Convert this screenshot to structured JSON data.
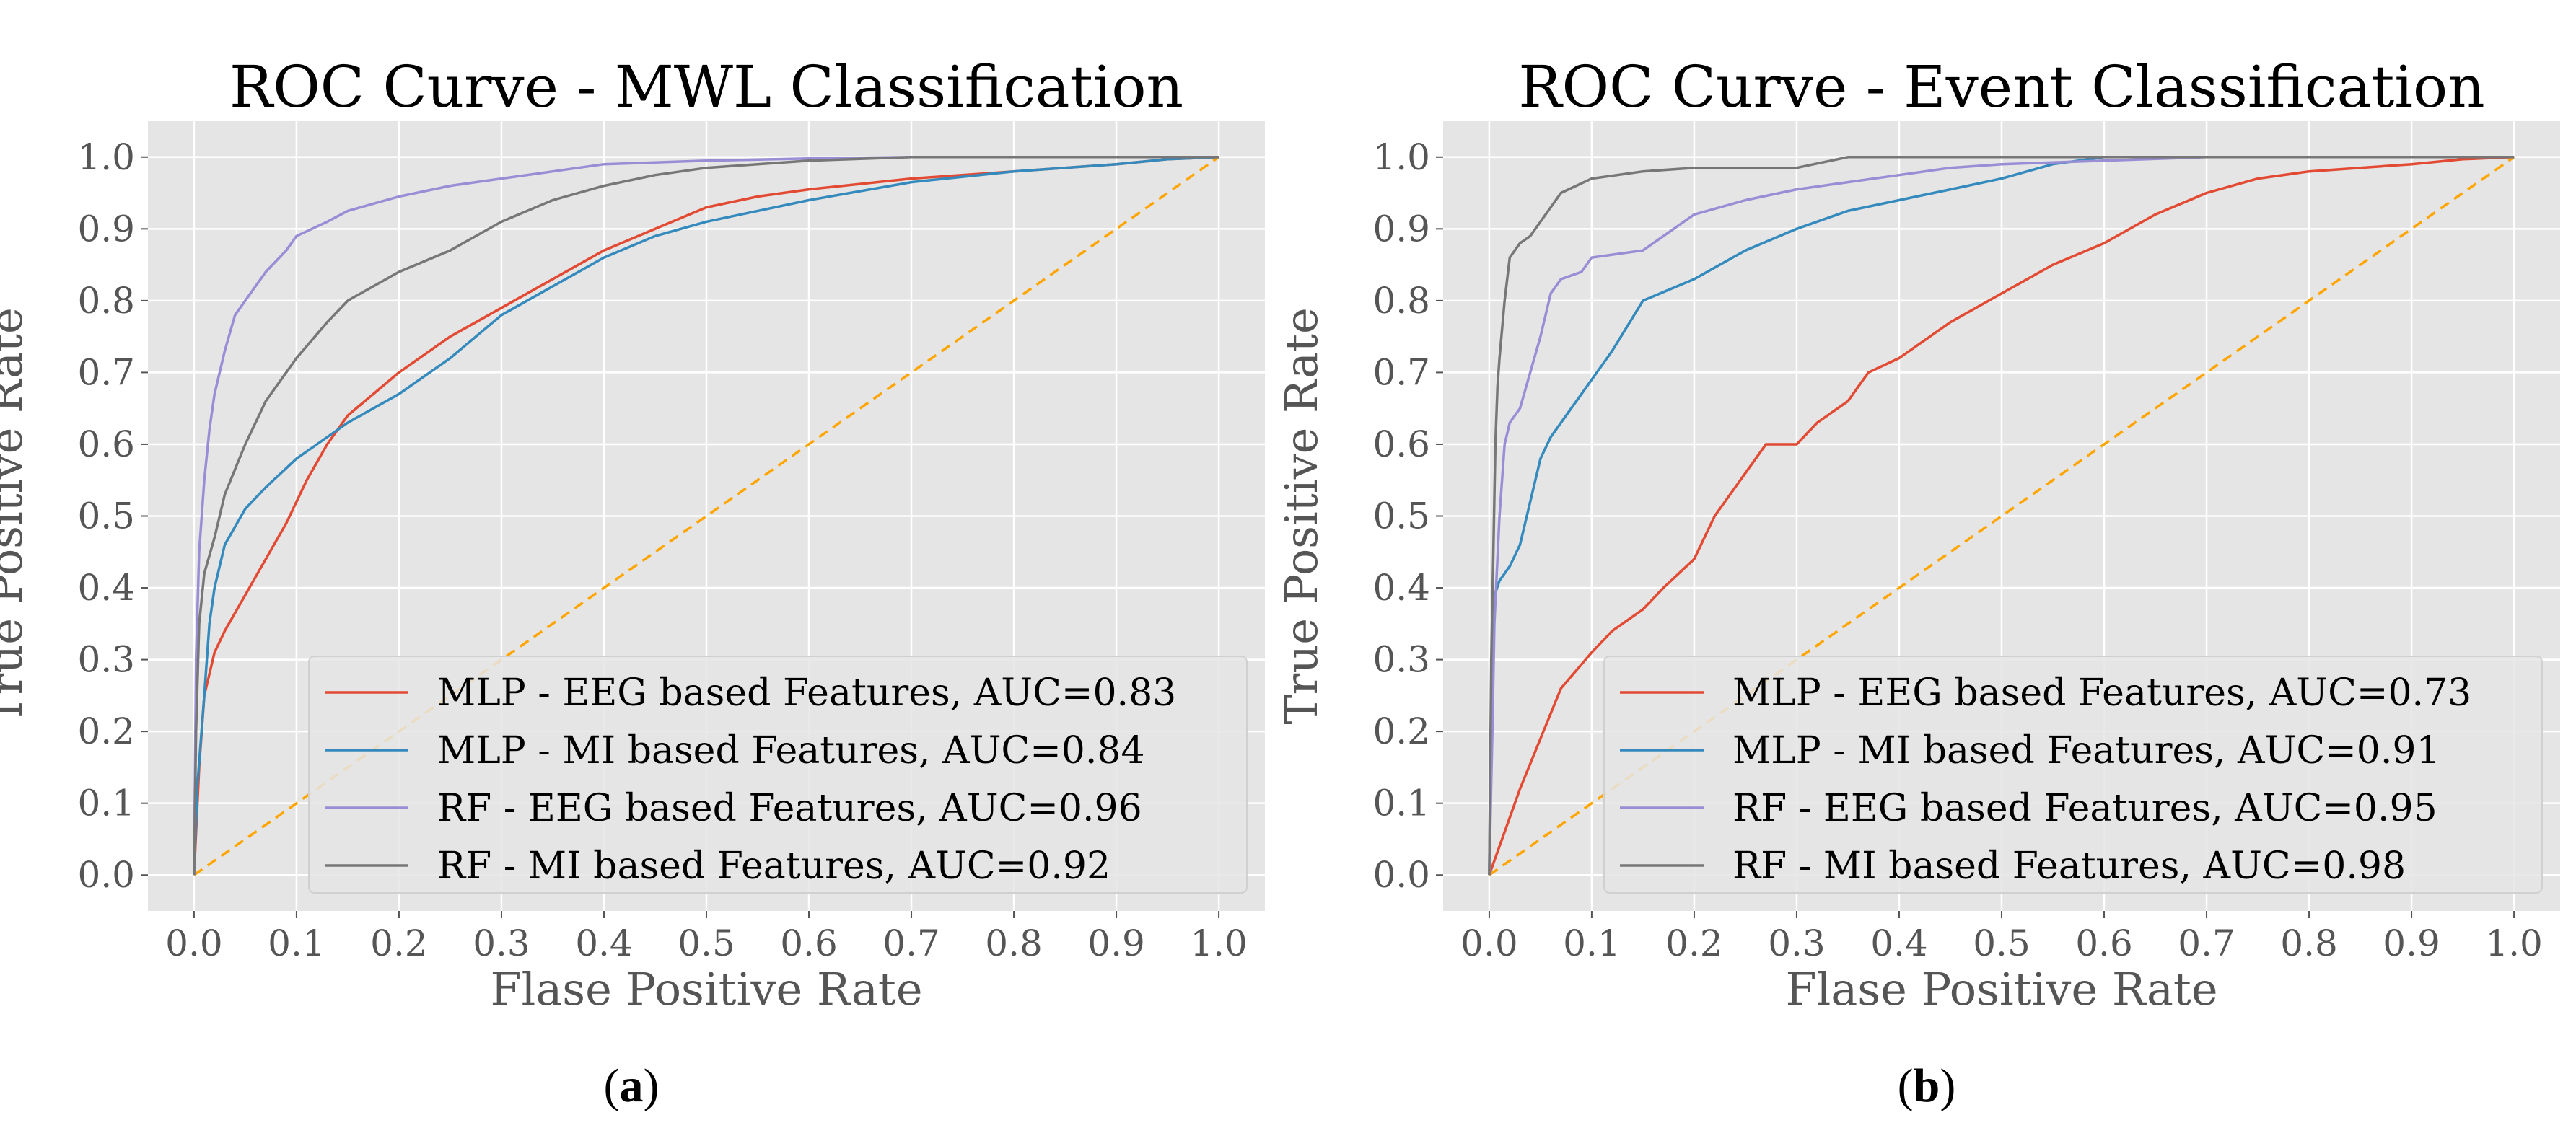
{
  "chart_data": [
    {
      "type": "line",
      "panel_label": "a",
      "title": "ROC Curve - MWL Classification",
      "xlabel": "Flase Positive Rate",
      "ylabel": "True Positive Rate",
      "xlim": [
        -0.045,
        1.045
      ],
      "ylim": [
        -0.05,
        1.05
      ],
      "xticks": [
        0.0,
        0.1,
        0.2,
        0.3,
        0.4,
        0.5,
        0.6,
        0.7,
        0.8,
        0.9,
        1.0
      ],
      "yticks": [
        0.0,
        0.1,
        0.2,
        0.3,
        0.4,
        0.5,
        0.6,
        0.7,
        0.8,
        0.9,
        1.0
      ],
      "grid": true,
      "legend": "lower-right",
      "diagonal": {
        "style": "dashed",
        "color": "#ffa500"
      },
      "series": [
        {
          "name": "MLP - EEG based Features, AUC=0.83",
          "color": "#e24a33",
          "x": [
            0,
            0.005,
            0.01,
            0.02,
            0.03,
            0.05,
            0.07,
            0.09,
            0.11,
            0.13,
            0.15,
            0.2,
            0.25,
            0.3,
            0.35,
            0.4,
            0.45,
            0.5,
            0.55,
            0.6,
            0.7,
            0.8,
            0.9,
            0.95,
            1.0
          ],
          "y": [
            0,
            0.15,
            0.25,
            0.31,
            0.34,
            0.39,
            0.44,
            0.49,
            0.55,
            0.6,
            0.64,
            0.7,
            0.75,
            0.79,
            0.83,
            0.87,
            0.9,
            0.93,
            0.945,
            0.955,
            0.97,
            0.98,
            0.99,
            0.997,
            1.0
          ]
        },
        {
          "name": "MLP - MI based Features, AUC=0.84",
          "color": "#348abd",
          "x": [
            0,
            0.003,
            0.01,
            0.015,
            0.02,
            0.03,
            0.05,
            0.07,
            0.1,
            0.13,
            0.15,
            0.2,
            0.25,
            0.3,
            0.35,
            0.4,
            0.45,
            0.5,
            0.6,
            0.7,
            0.8,
            0.9,
            0.95,
            1.0
          ],
          "y": [
            0,
            0.12,
            0.25,
            0.35,
            0.4,
            0.46,
            0.51,
            0.54,
            0.58,
            0.61,
            0.63,
            0.67,
            0.72,
            0.78,
            0.82,
            0.86,
            0.89,
            0.91,
            0.94,
            0.965,
            0.98,
            0.99,
            0.997,
            1.0
          ]
        },
        {
          "name": "RF - EEG based Features, AUC=0.96",
          "color": "#988ed5",
          "x": [
            0,
            0.002,
            0.005,
            0.01,
            0.015,
            0.02,
            0.03,
            0.04,
            0.05,
            0.07,
            0.09,
            0.1,
            0.13,
            0.15,
            0.2,
            0.25,
            0.3,
            0.35,
            0.4,
            0.5,
            0.6,
            0.7,
            0.8,
            0.9,
            1.0
          ],
          "y": [
            0,
            0.3,
            0.45,
            0.55,
            0.62,
            0.67,
            0.73,
            0.78,
            0.8,
            0.84,
            0.87,
            0.89,
            0.91,
            0.925,
            0.945,
            0.96,
            0.97,
            0.98,
            0.99,
            0.995,
            0.998,
            1.0,
            1.0,
            1.0,
            1.0
          ]
        },
        {
          "name": "RF - MI based Features, AUC=0.92",
          "color": "#777777",
          "x": [
            0,
            0.002,
            0.005,
            0.01,
            0.02,
            0.03,
            0.05,
            0.07,
            0.1,
            0.13,
            0.15,
            0.2,
            0.25,
            0.3,
            0.35,
            0.4,
            0.45,
            0.5,
            0.6,
            0.7,
            0.8,
            0.9,
            1.0
          ],
          "y": [
            0,
            0.2,
            0.35,
            0.42,
            0.47,
            0.53,
            0.6,
            0.66,
            0.72,
            0.77,
            0.8,
            0.84,
            0.87,
            0.91,
            0.94,
            0.96,
            0.975,
            0.985,
            0.995,
            1.0,
            1.0,
            1.0,
            1.0
          ]
        }
      ]
    },
    {
      "type": "line",
      "panel_label": "b",
      "title": "ROC Curve - Event Classification",
      "xlabel": "Flase Positive Rate",
      "ylabel": "True Positive Rate",
      "xlim": [
        -0.045,
        1.045
      ],
      "ylim": [
        -0.05,
        1.05
      ],
      "xticks": [
        0.0,
        0.1,
        0.2,
        0.3,
        0.4,
        0.5,
        0.6,
        0.7,
        0.8,
        0.9,
        1.0
      ],
      "yticks": [
        0.0,
        0.1,
        0.2,
        0.3,
        0.4,
        0.5,
        0.6,
        0.7,
        0.8,
        0.9,
        1.0
      ],
      "grid": true,
      "legend": "lower-right",
      "diagonal": {
        "style": "dashed",
        "color": "#ffa500"
      },
      "series": [
        {
          "name": "MLP - EEG based Features, AUC=0.73",
          "color": "#e24a33",
          "x": [
            0,
            0.01,
            0.02,
            0.03,
            0.05,
            0.07,
            0.1,
            0.12,
            0.15,
            0.17,
            0.2,
            0.22,
            0.25,
            0.27,
            0.3,
            0.32,
            0.35,
            0.37,
            0.4,
            0.45,
            0.5,
            0.55,
            0.6,
            0.65,
            0.7,
            0.75,
            0.8,
            0.85,
            0.9,
            0.95,
            1.0
          ],
          "y": [
            0,
            0.04,
            0.08,
            0.12,
            0.19,
            0.26,
            0.31,
            0.34,
            0.37,
            0.4,
            0.44,
            0.5,
            0.56,
            0.6,
            0.6,
            0.63,
            0.66,
            0.7,
            0.72,
            0.77,
            0.81,
            0.85,
            0.88,
            0.92,
            0.95,
            0.97,
            0.98,
            0.985,
            0.99,
            0.997,
            1.0
          ]
        },
        {
          "name": "MLP - MI based Features, AUC=0.91",
          "color": "#348abd",
          "x": [
            0,
            0.003,
            0.01,
            0.02,
            0.03,
            0.04,
            0.05,
            0.06,
            0.08,
            0.1,
            0.12,
            0.15,
            0.2,
            0.25,
            0.3,
            0.35,
            0.4,
            0.45,
            0.5,
            0.55,
            0.6,
            0.7,
            0.8,
            0.9,
            1.0
          ],
          "y": [
            0,
            0.38,
            0.41,
            0.43,
            0.46,
            0.52,
            0.58,
            0.61,
            0.65,
            0.69,
            0.73,
            0.8,
            0.83,
            0.87,
            0.9,
            0.925,
            0.94,
            0.955,
            0.97,
            0.99,
            1.0,
            1.0,
            1.0,
            1.0,
            1.0
          ]
        },
        {
          "name": "RF - EEG based Features, AUC=0.95",
          "color": "#988ed5",
          "x": [
            0,
            0.003,
            0.005,
            0.01,
            0.015,
            0.02,
            0.03,
            0.04,
            0.05,
            0.06,
            0.07,
            0.09,
            0.1,
            0.15,
            0.2,
            0.25,
            0.3,
            0.35,
            0.4,
            0.45,
            0.5,
            0.6,
            0.7,
            0.8,
            0.9,
            1.0
          ],
          "y": [
            0,
            0.2,
            0.35,
            0.5,
            0.6,
            0.63,
            0.65,
            0.7,
            0.75,
            0.81,
            0.83,
            0.84,
            0.86,
            0.87,
            0.92,
            0.94,
            0.955,
            0.965,
            0.975,
            0.985,
            0.99,
            0.995,
            1.0,
            1.0,
            1.0,
            1.0
          ]
        },
        {
          "name": "RF - MI based Features, AUC=0.98",
          "color": "#777777",
          "x": [
            0,
            0.002,
            0.004,
            0.006,
            0.008,
            0.01,
            0.015,
            0.02,
            0.03,
            0.04,
            0.05,
            0.07,
            0.1,
            0.15,
            0.2,
            0.25,
            0.3,
            0.35,
            0.4,
            0.5,
            0.6,
            0.7,
            0.8,
            0.9,
            1.0
          ],
          "y": [
            0,
            0.3,
            0.45,
            0.6,
            0.68,
            0.72,
            0.8,
            0.86,
            0.88,
            0.89,
            0.91,
            0.95,
            0.97,
            0.98,
            0.985,
            0.985,
            0.985,
            1.0,
            1.0,
            1.0,
            1.0,
            1.0,
            1.0,
            1.0,
            1.0
          ]
        }
      ]
    }
  ]
}
